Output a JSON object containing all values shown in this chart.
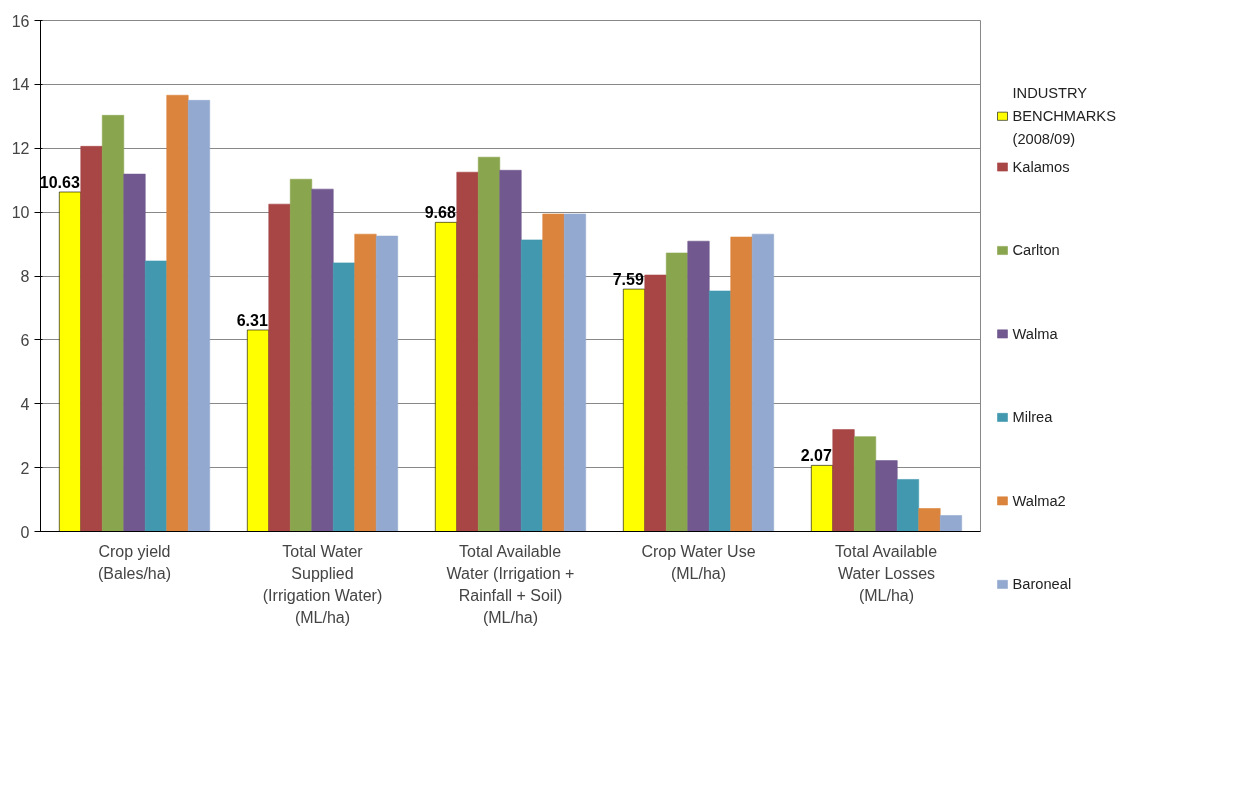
{
  "chart_data": {
    "type": "bar",
    "categories": [
      "Crop yield\n(Bales/ha)",
      "Total Water\nSupplied\n(Irrigation Water)\n(ML/ha)",
      "Total Available\nWater (Irrigation +\nRainfall + Soil)\n(ML/ha)",
      "Crop Water Use\n(ML/ha)",
      "Total Available\nWater Losses\n(ML/ha)"
    ],
    "series": [
      {
        "name": "INDUSTRY\nBENCHMARKS\n(2008/09)",
        "color": "#ffff00",
        "values": [
          10.63,
          6.31,
          9.68,
          7.59,
          2.07
        ],
        "value_labels": [
          "10.63",
          "6.31",
          "9.68",
          "7.59",
          "2.07"
        ]
      },
      {
        "name": "Kalamos",
        "color": "#a84545",
        "values": [
          12.06,
          10.25,
          11.25,
          8.03,
          3.19
        ]
      },
      {
        "name": "Carlton",
        "color": "#89a54e",
        "values": [
          13.03,
          11.03,
          11.72,
          8.72,
          2.97
        ]
      },
      {
        "name": "Walma",
        "color": "#71588f",
        "values": [
          11.19,
          10.72,
          11.31,
          9.09,
          2.22
        ]
      },
      {
        "name": "Milrea",
        "color": "#4198af",
        "values": [
          8.47,
          8.41,
          9.13,
          7.53,
          1.63
        ]
      },
      {
        "name": "Walma2",
        "color": "#db843d",
        "values": [
          13.66,
          9.31,
          9.94,
          9.22,
          0.72
        ]
      },
      {
        "name": "Baroneal",
        "color": "#93a9cf",
        "values": [
          13.5,
          9.25,
          9.94,
          9.31,
          0.5
        ]
      }
    ],
    "ylim": [
      0,
      16
    ],
    "yticks": [
      0,
      2,
      4,
      6,
      8,
      10,
      12,
      14,
      16
    ],
    "grid": "y",
    "legend": "right"
  }
}
